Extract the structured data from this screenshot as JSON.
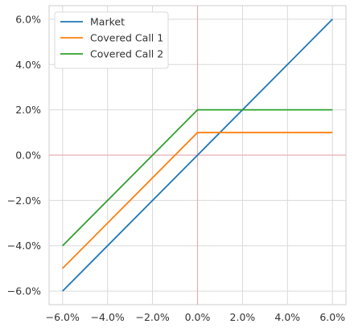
{
  "chart_data": {
    "type": "line",
    "x": [
      -6,
      0,
      6
    ],
    "series": [
      {
        "name": "Market",
        "values": [
          -6,
          0,
          6
        ],
        "color": "#1f77b4"
      },
      {
        "name": "Covered Call 1",
        "values": [
          -5,
          1,
          1
        ],
        "color": "#ff7f0e"
      },
      {
        "name": "Covered Call 2",
        "values": [
          -4,
          2,
          2
        ],
        "color": "#2ca02c"
      }
    ],
    "xticks": [
      -6,
      -4,
      -2,
      0,
      2,
      4,
      6
    ],
    "yticks": [
      -6,
      -4,
      -2,
      0,
      2,
      4,
      6
    ],
    "xtick_labels": [
      "−6.0%",
      "−4.0%",
      "−2.0%",
      "0.0%",
      "2.0%",
      "4.0%",
      "6.0%"
    ],
    "ytick_labels": [
      "−6.0%",
      "−4.0%",
      "−2.0%",
      "0.0%",
      "2.0%",
      "4.0%",
      "6.0%"
    ],
    "xlim": [
      -6.6,
      6.6
    ],
    "ylim": [
      -6.6,
      6.6
    ],
    "grid": true,
    "reference_lines": {
      "x": 0,
      "y": 0,
      "color": "#e6aeb4"
    },
    "legend_position": "top-left",
    "title": "",
    "xlabel": "",
    "ylabel": ""
  }
}
